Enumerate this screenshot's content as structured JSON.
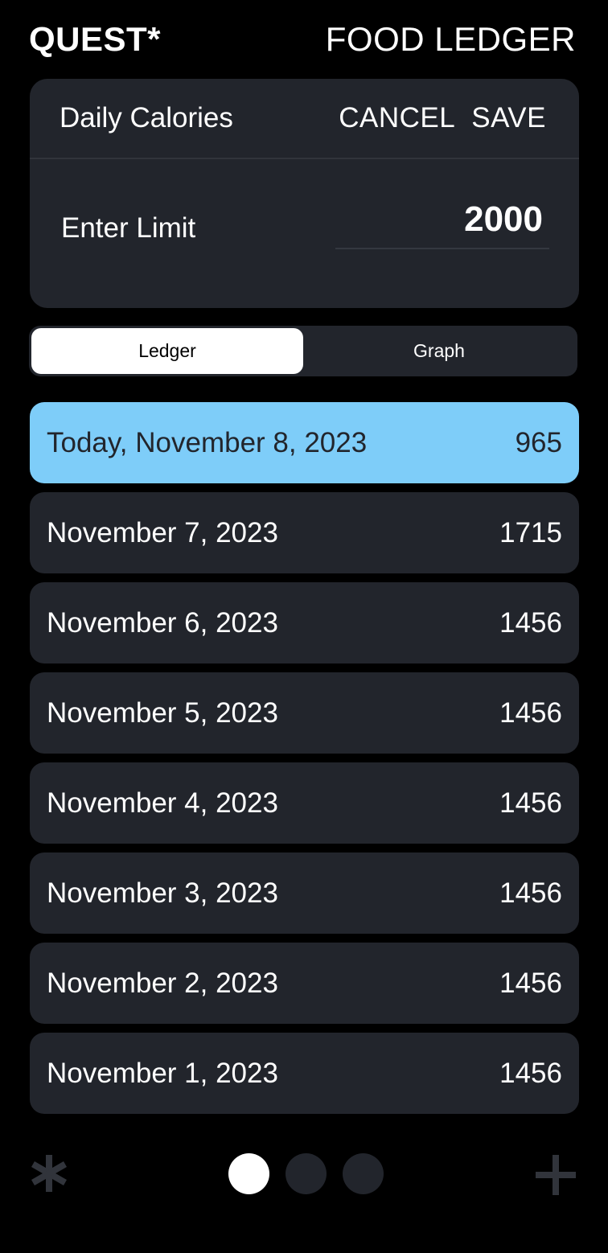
{
  "header": {
    "brand": "QUEST*",
    "title": "FOOD LEDGER"
  },
  "calorie_card": {
    "heading": "Daily Calories",
    "cancel_label": "CANCEL",
    "save_label": "SAVE",
    "limit_label": "Enter Limit",
    "limit_value": "2000"
  },
  "tabs": [
    {
      "label": "Ledger",
      "active": true
    },
    {
      "label": "Graph",
      "active": false
    }
  ],
  "ledger": [
    {
      "date": "Today, November 8, 2023",
      "calories": "965",
      "highlighted": true
    },
    {
      "date": "November 7, 2023",
      "calories": "1715"
    },
    {
      "date": "November 6, 2023",
      "calories": "1456"
    },
    {
      "date": "November 5, 2023",
      "calories": "1456"
    },
    {
      "date": "November 4, 2023",
      "calories": "1456"
    },
    {
      "date": "November 3, 2023",
      "calories": "1456"
    },
    {
      "date": "November 2, 2023",
      "calories": "1456"
    },
    {
      "date": "November 1, 2023",
      "calories": "1456"
    }
  ],
  "bottom_nav": {
    "left_icon": "asterisk-icon",
    "right_icon": "plus-icon",
    "page_count": 3,
    "active_page": 1
  },
  "colors": {
    "background": "#000000",
    "surface": "#22252c",
    "highlight": "#7ecdf9",
    "icon_dim": "#31343b"
  }
}
